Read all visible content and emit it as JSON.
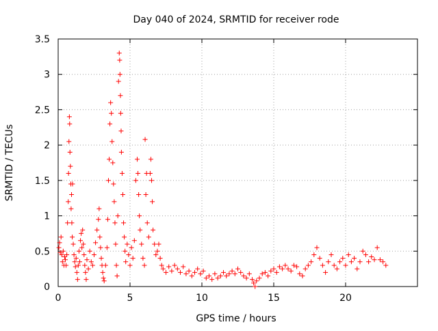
{
  "chart_data": {
    "type": "scatter",
    "title": "Day 040 of 2024, SRMTID for receiver rode",
    "xlabel": "GPS time / hours",
    "ylabel": "SRMTID / TECUs",
    "xlim": [
      0,
      25
    ],
    "ylim": [
      0,
      3.5
    ],
    "grid": true,
    "marker": "+",
    "marker_color": "#ff0000",
    "x_ticks": [
      {
        "value": 0,
        "label": "0"
      },
      {
        "value": 5,
        "label": "5"
      },
      {
        "value": 10,
        "label": "10"
      },
      {
        "value": 15,
        "label": "15"
      },
      {
        "value": 20,
        "label": "20"
      }
    ],
    "y_ticks": [
      {
        "value": 0,
        "label": "0"
      },
      {
        "value": 0.5,
        "label": "0.5"
      },
      {
        "value": 1,
        "label": "1"
      },
      {
        "value": 1.5,
        "label": "1.5"
      },
      {
        "value": 2,
        "label": "2"
      },
      {
        "value": 2.5,
        "label": "2.5"
      },
      {
        "value": 3,
        "label": "3"
      },
      {
        "value": 3.5,
        "label": "3.5"
      }
    ],
    "series": [
      {
        "name": "SRMTID",
        "points": [
          [
            0.05,
            0.55
          ],
          [
            0.1,
            0.62
          ],
          [
            0.15,
            0.48
          ],
          [
            0.2,
            0.7
          ],
          [
            0.25,
            0.45
          ],
          [
            0.3,
            0.35
          ],
          [
            0.35,
            0.5
          ],
          [
            0.4,
            0.3
          ],
          [
            0.45,
            0.42
          ],
          [
            0.5,
            0.38
          ],
          [
            0.55,
            0.3
          ],
          [
            0.6,
            0.45
          ],
          [
            0.65,
            0.9
          ],
          [
            0.7,
            1.2
          ],
          [
            0.72,
            1.6
          ],
          [
            0.75,
            2.05
          ],
          [
            0.78,
            2.4
          ],
          [
            0.8,
            2.3
          ],
          [
            0.82,
            1.9
          ],
          [
            0.85,
            1.7
          ],
          [
            0.88,
            1.45
          ],
          [
            0.9,
            1.1
          ],
          [
            0.93,
            1.3
          ],
          [
            0.95,
            0.9
          ],
          [
            0.98,
            0.7
          ],
          [
            1.0,
            1.45
          ],
          [
            1.05,
            0.6
          ],
          [
            1.1,
            0.45
          ],
          [
            1.15,
            0.35
          ],
          [
            1.2,
            0.28
          ],
          [
            1.25,
            0.4
          ],
          [
            1.3,
            0.2
          ],
          [
            1.35,
            0.1
          ],
          [
            1.4,
            0.3
          ],
          [
            1.45,
            0.5
          ],
          [
            1.5,
            0.35
          ],
          [
            1.55,
            0.65
          ],
          [
            1.6,
            0.75
          ],
          [
            1.65,
            0.55
          ],
          [
            1.7,
            0.8
          ],
          [
            1.75,
            0.6
          ],
          [
            1.8,
            0.45
          ],
          [
            1.85,
            0.3
          ],
          [
            1.9,
            0.2
          ],
          [
            1.95,
            0.1
          ],
          [
            2.0,
            0.38
          ],
          [
            2.1,
            0.25
          ],
          [
            2.2,
            0.5
          ],
          [
            2.3,
            0.35
          ],
          [
            2.4,
            0.3
          ],
          [
            2.5,
            0.45
          ],
          [
            2.6,
            0.62
          ],
          [
            2.7,
            0.8
          ],
          [
            2.8,
            0.95
          ],
          [
            2.85,
            1.1
          ],
          [
            2.9,
            0.7
          ],
          [
            2.95,
            0.55
          ],
          [
            3.0,
            0.4
          ],
          [
            3.05,
            0.3
          ],
          [
            3.1,
            0.2
          ],
          [
            3.15,
            0.12
          ],
          [
            3.2,
            0.08
          ],
          [
            3.3,
            0.3
          ],
          [
            3.4,
            0.55
          ],
          [
            3.45,
            0.95
          ],
          [
            3.5,
            1.5
          ],
          [
            3.55,
            1.8
          ],
          [
            3.6,
            2.3
          ],
          [
            3.65,
            2.6
          ],
          [
            3.7,
            2.45
          ],
          [
            3.75,
            2.05
          ],
          [
            3.8,
            1.75
          ],
          [
            3.85,
            1.45
          ],
          [
            3.9,
            1.2
          ],
          [
            3.95,
            0.9
          ],
          [
            4.0,
            0.6
          ],
          [
            4.05,
            0.3
          ],
          [
            4.1,
            0.15
          ],
          [
            4.15,
            1.0
          ],
          [
            4.2,
            2.9
          ],
          [
            4.25,
            3.3
          ],
          [
            4.28,
            3.2
          ],
          [
            4.3,
            3.0
          ],
          [
            4.33,
            2.7
          ],
          [
            4.35,
            2.45
          ],
          [
            4.38,
            2.2
          ],
          [
            4.4,
            1.9
          ],
          [
            4.45,
            1.6
          ],
          [
            4.5,
            1.3
          ],
          [
            4.55,
            0.9
          ],
          [
            4.6,
            0.7
          ],
          [
            4.65,
            0.5
          ],
          [
            4.7,
            0.35
          ],
          [
            4.8,
            0.6
          ],
          [
            4.9,
            0.45
          ],
          [
            5.0,
            0.3
          ],
          [
            5.1,
            0.55
          ],
          [
            5.2,
            0.4
          ],
          [
            5.3,
            0.65
          ],
          [
            5.4,
            1.5
          ],
          [
            5.5,
            1.8
          ],
          [
            5.55,
            1.6
          ],
          [
            5.6,
            1.3
          ],
          [
            5.65,
            1.0
          ],
          [
            5.7,
            0.8
          ],
          [
            5.8,
            0.6
          ],
          [
            5.9,
            0.4
          ],
          [
            6.0,
            0.3
          ],
          [
            6.05,
            2.08
          ],
          [
            6.1,
            1.3
          ],
          [
            6.15,
            1.6
          ],
          [
            6.2,
            0.9
          ],
          [
            6.3,
            0.7
          ],
          [
            6.4,
            1.6
          ],
          [
            6.45,
            1.8
          ],
          [
            6.5,
            1.5
          ],
          [
            6.55,
            1.2
          ],
          [
            6.6,
            0.8
          ],
          [
            6.7,
            0.6
          ],
          [
            6.8,
            0.45
          ],
          [
            6.9,
            0.5
          ],
          [
            7.0,
            0.6
          ],
          [
            7.1,
            0.4
          ],
          [
            7.2,
            0.3
          ],
          [
            7.3,
            0.25
          ],
          [
            7.5,
            0.2
          ],
          [
            7.7,
            0.28
          ],
          [
            7.9,
            0.22
          ],
          [
            8.1,
            0.3
          ],
          [
            8.3,
            0.25
          ],
          [
            8.5,
            0.2
          ],
          [
            8.7,
            0.28
          ],
          [
            8.9,
            0.18
          ],
          [
            9.1,
            0.22
          ],
          [
            9.3,
            0.15
          ],
          [
            9.5,
            0.2
          ],
          [
            9.7,
            0.25
          ],
          [
            9.9,
            0.18
          ],
          [
            10.1,
            0.22
          ],
          [
            10.3,
            0.12
          ],
          [
            10.5,
            0.15
          ],
          [
            10.7,
            0.1
          ],
          [
            10.9,
            0.18
          ],
          [
            11.1,
            0.12
          ],
          [
            11.3,
            0.15
          ],
          [
            11.5,
            0.2
          ],
          [
            11.7,
            0.15
          ],
          [
            11.9,
            0.18
          ],
          [
            12.1,
            0.22
          ],
          [
            12.3,
            0.18
          ],
          [
            12.5,
            0.25
          ],
          [
            12.7,
            0.2
          ],
          [
            12.9,
            0.15
          ],
          [
            13.1,
            0.12
          ],
          [
            13.3,
            0.18
          ],
          [
            13.5,
            0.1
          ],
          [
            13.6,
            0.05
          ],
          [
            13.7,
            0.0
          ],
          [
            13.8,
            0.08
          ],
          [
            14.0,
            0.12
          ],
          [
            14.2,
            0.18
          ],
          [
            14.4,
            0.2
          ],
          [
            14.6,
            0.15
          ],
          [
            14.8,
            0.22
          ],
          [
            15.0,
            0.25
          ],
          [
            15.2,
            0.2
          ],
          [
            15.4,
            0.28
          ],
          [
            15.6,
            0.25
          ],
          [
            15.8,
            0.3
          ],
          [
            16.0,
            0.25
          ],
          [
            16.2,
            0.22
          ],
          [
            16.4,
            0.3
          ],
          [
            16.6,
            0.28
          ],
          [
            16.8,
            0.18
          ],
          [
            17.0,
            0.15
          ],
          [
            17.2,
            0.25
          ],
          [
            17.4,
            0.3
          ],
          [
            17.6,
            0.35
          ],
          [
            17.8,
            0.45
          ],
          [
            18.0,
            0.55
          ],
          [
            18.2,
            0.4
          ],
          [
            18.4,
            0.3
          ],
          [
            18.6,
            0.2
          ],
          [
            18.8,
            0.35
          ],
          [
            19.0,
            0.45
          ],
          [
            19.2,
            0.3
          ],
          [
            19.4,
            0.25
          ],
          [
            19.6,
            0.35
          ],
          [
            19.8,
            0.4
          ],
          [
            20.0,
            0.3
          ],
          [
            20.2,
            0.45
          ],
          [
            20.4,
            0.35
          ],
          [
            20.6,
            0.4
          ],
          [
            20.8,
            0.25
          ],
          [
            21.0,
            0.35
          ],
          [
            21.2,
            0.5
          ],
          [
            21.4,
            0.45
          ],
          [
            21.6,
            0.35
          ],
          [
            21.8,
            0.42
          ],
          [
            22.0,
            0.38
          ],
          [
            22.2,
            0.55
          ],
          [
            22.4,
            0.38
          ],
          [
            22.6,
            0.35
          ],
          [
            22.8,
            0.3
          ]
        ]
      }
    ]
  }
}
